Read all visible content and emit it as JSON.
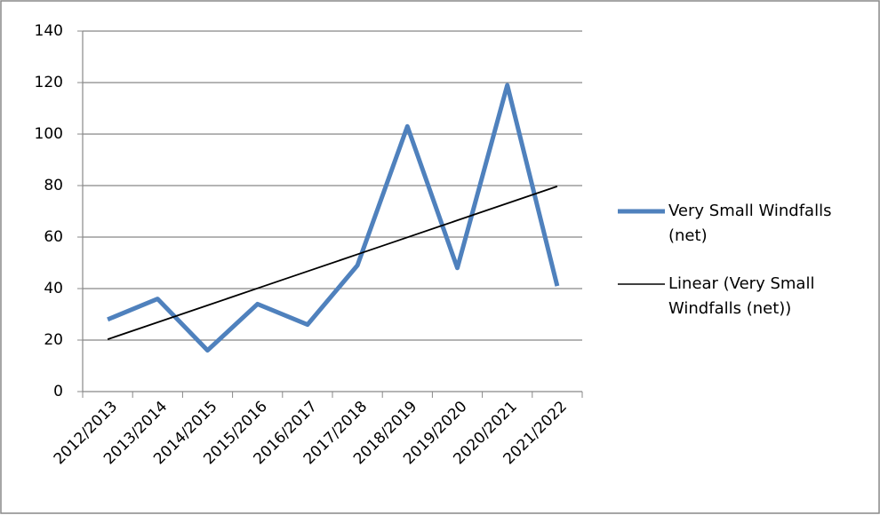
{
  "chart_data": {
    "type": "line",
    "categories": [
      "2012/2013",
      "2013/2014",
      "2014/2015",
      "2015/2016",
      "2016/2017",
      "2017/2018",
      "2018/2019",
      "2019/2020",
      "2020/2021",
      "2021/2022"
    ],
    "series": [
      {
        "name": "Very Small Windfalls (net)",
        "color": "#4f81bd",
        "values": [
          28,
          36,
          16,
          34,
          26,
          49,
          103,
          48,
          119,
          41
        ]
      },
      {
        "name": "Linear (Very Small Windfalls (net))",
        "color": "#000000",
        "values": [
          20.3,
          26.9,
          33.5,
          40.1,
          46.7,
          53.3,
          59.9,
          66.5,
          73.1,
          79.7
        ]
      }
    ],
    "ylim": [
      0,
      140
    ],
    "yticks": [
      0,
      20,
      40,
      60,
      80,
      100,
      120,
      140
    ],
    "grid": true,
    "legend": "right"
  }
}
